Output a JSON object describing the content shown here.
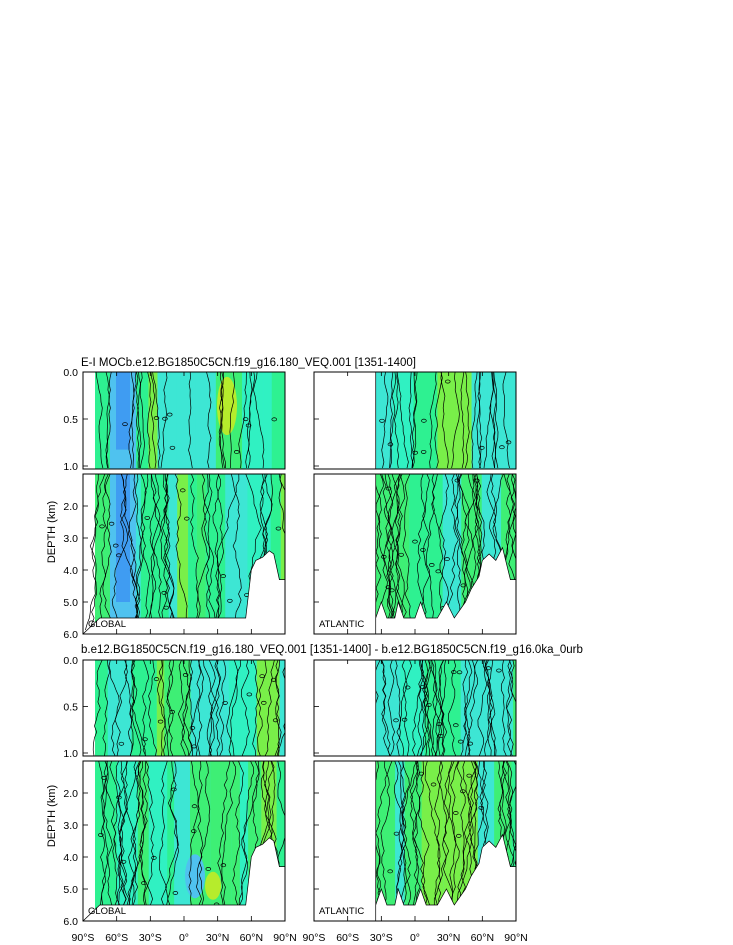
{
  "figure": {
    "rows": [
      {
        "title": "E-I MOCb.e12.BG1850C5CN.f19_g16.180_VEQ.001 [1351-1400]",
        "ylabel": "DEPTH (km)",
        "panels": [
          {
            "label": "GLOBAL",
            "basin": "global"
          },
          {
            "label": "ATLANTIC",
            "basin": "atlantic"
          }
        ]
      },
      {
        "title": "b.e12.BG1850C5CN.f19_g16.180_VEQ.001 [1351-1400] - b.e12.BG1850C5CN.f19_g16.0ka_0urb",
        "ylabel": "DEPTH (km)",
        "panels": [
          {
            "label": "GLOBAL",
            "basin": "global"
          },
          {
            "label": "ATLANTIC",
            "basin": "atlantic"
          }
        ]
      }
    ],
    "colors": {
      "blue": "#3f9cf2",
      "lightblue": "#4fc2ef",
      "cyan": "#3de6d4",
      "cyanlight": "#2ff2c0",
      "green": "#2cf28a",
      "green2": "#3ef06a",
      "lime": "#7fef3a",
      "yellowgreen": "#b6ec2c"
    }
  },
  "chart_data": {
    "type": "heatmap",
    "description_units": "contoured field vs latitude and depth",
    "x_tick_labels": [
      "90°S",
      "60°S",
      "30°S",
      "0°",
      "30°N",
      "60°N",
      "90°N"
    ],
    "x_ticks": [
      -90,
      -60,
      -30,
      0,
      30,
      60,
      90
    ],
    "xlim_global": [
      -90,
      90
    ],
    "xlim_atlantic": [
      -90,
      90
    ],
    "atlantic_start_lat": -35,
    "y_upper_ticks": [
      "0.0",
      "0.5",
      "1.0"
    ],
    "y_lower_ticks": [
      "2.0",
      "3.0",
      "4.0",
      "5.0",
      "6.0"
    ],
    "ylim_upper_km": [
      0,
      1
    ],
    "ylim_lower_km": [
      1,
      6
    ],
    "bottom_depth_global": [
      [
        -75,
        5.5
      ],
      [
        55,
        5.5
      ],
      [
        60,
        4.0
      ],
      [
        64,
        3.7
      ],
      [
        70,
        3.6
      ],
      [
        76,
        3.4
      ],
      [
        80,
        3.5
      ],
      [
        85,
        4.3
      ],
      [
        90,
        4.3
      ]
    ],
    "bottom_depth_atlantic": [
      [
        -35,
        5.5
      ],
      [
        -30,
        5.0
      ],
      [
        -25,
        5.5
      ],
      [
        -18,
        5.5
      ],
      [
        -15,
        5.0
      ],
      [
        -10,
        5.5
      ],
      [
        0,
        5.5
      ],
      [
        5,
        5.0
      ],
      [
        10,
        5.5
      ],
      [
        20,
        5.5
      ],
      [
        28,
        5.0
      ],
      [
        35,
        5.5
      ],
      [
        45,
        5.0
      ],
      [
        50,
        4.6
      ],
      [
        57,
        4.2
      ],
      [
        60,
        3.7
      ],
      [
        66,
        3.5
      ],
      [
        72,
        3.7
      ],
      [
        78,
        3.3
      ],
      [
        85,
        4.3
      ],
      [
        90,
        4.3
      ]
    ]
  }
}
